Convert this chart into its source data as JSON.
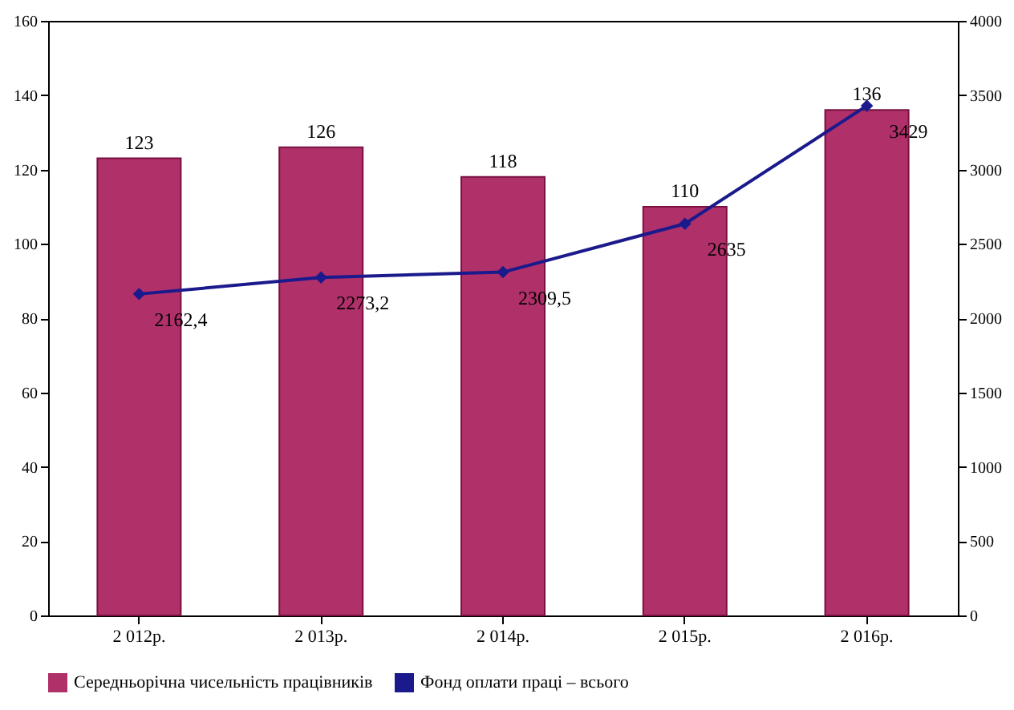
{
  "chart_data": {
    "type": "bar",
    "categories": [
      "2 012р.",
      "2 013р.",
      "2 014р.",
      "2 015р.",
      "2 016р."
    ],
    "series": [
      {
        "name": "Середньорічна чисельність працівників",
        "color": "#b0306a",
        "values": [
          123,
          126,
          118,
          110,
          136
        ],
        "value_labels": [
          "123",
          "126",
          "118",
          "110",
          "136"
        ]
      },
      {
        "name": "Фонд оплати праці – всього",
        "type": "line",
        "axis": "y2",
        "color": "#1a1a8c",
        "marker": "diamond",
        "values": [
          2162.4,
          2273.2,
          2309.5,
          2635,
          3429
        ],
        "value_labels": [
          "2162,4",
          "2273,2",
          "2309,5",
          "2635",
          "3429"
        ]
      }
    ],
    "ylim": [
      0,
      160
    ],
    "yticks": [
      0,
      20,
      40,
      60,
      80,
      100,
      120,
      140,
      160
    ],
    "y2lim": [
      0,
      4000
    ],
    "y2ticks": [
      0,
      500,
      1000,
      1500,
      2000,
      2500,
      3000,
      3500,
      4000
    ],
    "grid": false,
    "legend": "bottom"
  }
}
